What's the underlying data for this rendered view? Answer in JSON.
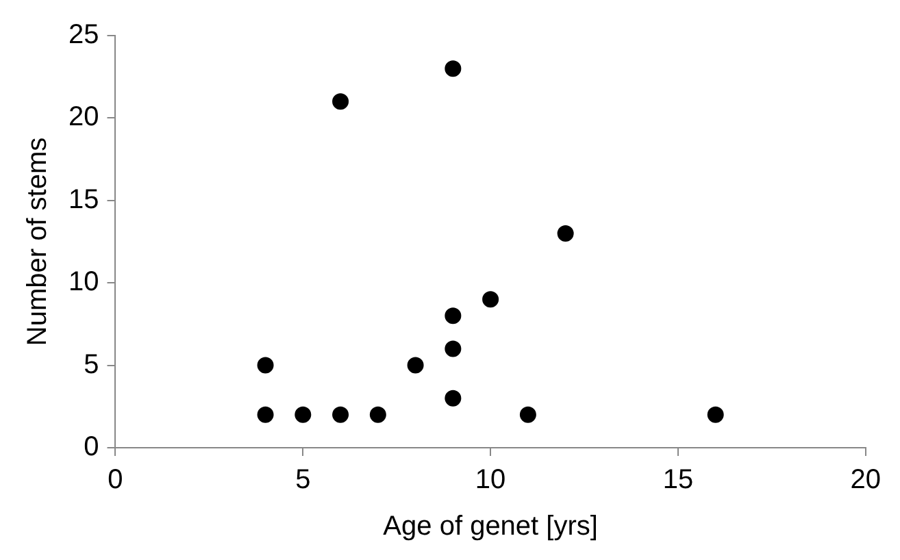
{
  "chart_data": {
    "type": "scatter",
    "xlabel": "Age of genet [yrs]",
    "ylabel": "Number of stems",
    "x": [
      4,
      4,
      5,
      6,
      7,
      6,
      9,
      8,
      9,
      9,
      9,
      10,
      11,
      12,
      16
    ],
    "values": [
      5,
      2,
      2,
      2,
      2,
      21,
      23,
      5,
      8,
      6,
      3,
      9,
      2,
      13,
      2
    ],
    "color": "#000000",
    "marker": "circle",
    "xlim": [
      0,
      20
    ],
    "xticks": [
      0,
      5,
      10,
      15,
      20
    ],
    "ylim": [
      0,
      25
    ],
    "yticks": [
      0,
      5,
      10,
      15,
      20,
      25
    ]
  }
}
